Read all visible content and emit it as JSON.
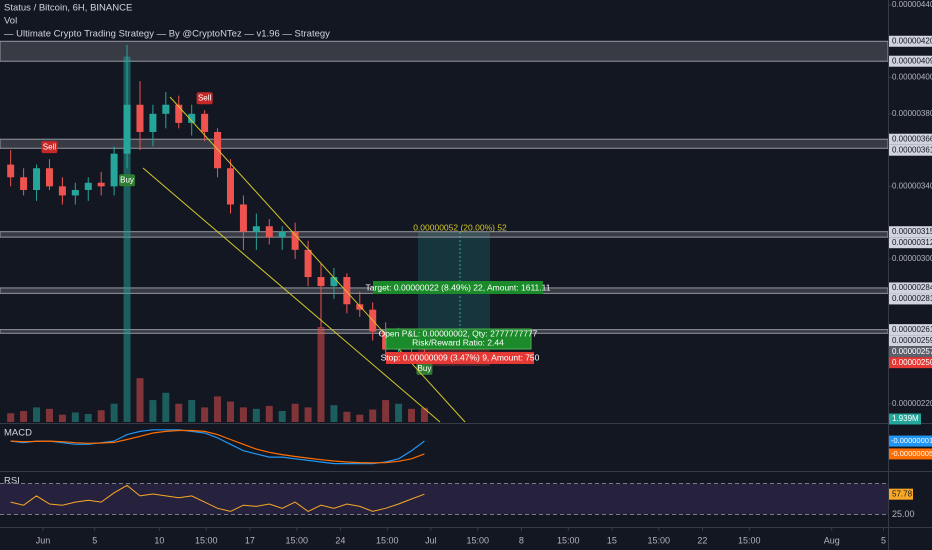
{
  "header": {
    "title": "Status / Bitcoin, 6H, BINANCE",
    "volume_label": "Vol",
    "strategy": "— Ultimate Crypto Trading Strategy — By @CryptoNTez — v1.96 — Strategy"
  },
  "chart_data": {
    "type": "candlestick",
    "x": [
      "05-29",
      "05-30",
      "05-31",
      "06-01",
      "06-02",
      "06-03",
      "06-04",
      "06-05",
      "06-06",
      "06-07",
      "06-08",
      "06-09",
      "06-10",
      "06-11",
      "06-12",
      "06-13",
      "06-14",
      "06-15",
      "06-16",
      "06-17",
      "06-18",
      "06-19",
      "06-20",
      "06-21",
      "06-22",
      "06-23",
      "06-24",
      "06-25",
      "06-26",
      "06-27",
      "06-28",
      "06-29",
      "06-30"
    ],
    "open": [
      3.52e-06,
      3.45e-06,
      3.38e-06,
      3.5e-06,
      3.4e-06,
      3.35e-06,
      3.38e-06,
      3.42e-06,
      3.4e-06,
      3.58e-06,
      3.85e-06,
      3.7e-06,
      3.8e-06,
      3.85e-06,
      3.75e-06,
      3.8e-06,
      3.7e-06,
      3.5e-06,
      3.3e-06,
      3.15e-06,
      3.18e-06,
      3.12e-06,
      3.15e-06,
      3.05e-06,
      2.9e-06,
      2.85e-06,
      2.9e-06,
      2.75e-06,
      2.72e-06,
      2.6e-06,
      2.5e-06,
      2.55e-06,
      2.52e-06
    ],
    "high": [
      3.6e-06,
      3.5e-06,
      3.52e-06,
      3.55e-06,
      3.45e-06,
      3.42e-06,
      3.45e-06,
      3.48e-06,
      3.62e-06,
      4.18e-06,
      3.98e-06,
      3.85e-06,
      3.92e-06,
      3.9e-06,
      3.85e-06,
      3.82e-06,
      3.72e-06,
      3.55e-06,
      3.35e-06,
      3.25e-06,
      3.22e-06,
      3.18e-06,
      3.2e-06,
      3.1e-06,
      2.98e-06,
      2.95e-06,
      2.92e-06,
      2.82e-06,
      2.76e-06,
      2.65e-06,
      2.62e-06,
      2.6e-06,
      2.58e-06
    ],
    "low": [
      3.4e-06,
      3.35e-06,
      3.32e-06,
      3.38e-06,
      3.3e-06,
      3.3e-06,
      3.32e-06,
      3.35e-06,
      3.35e-06,
      3.5e-06,
      3.6e-06,
      3.62e-06,
      3.72e-06,
      3.72e-06,
      3.68e-06,
      3.65e-06,
      3.45e-06,
      3.25e-06,
      3.05e-06,
      3.05e-06,
      3.08e-06,
      3.05e-06,
      3e-06,
      2.85e-06,
      2.62e-06,
      2.78e-06,
      2.7e-06,
      2.68e-06,
      2.55e-06,
      2.45e-06,
      2.43e-06,
      2.48e-06,
      2.46e-06
    ],
    "close": [
      3.45e-06,
      3.38e-06,
      3.5e-06,
      3.4e-06,
      3.35e-06,
      3.38e-06,
      3.42e-06,
      3.4e-06,
      3.58e-06,
      3.85e-06,
      3.7e-06,
      3.8e-06,
      3.85e-06,
      3.75e-06,
      3.8e-06,
      3.7e-06,
      3.5e-06,
      3.3e-06,
      3.15e-06,
      3.18e-06,
      3.12e-06,
      3.15e-06,
      3.05e-06,
      2.9e-06,
      2.85e-06,
      2.9e-06,
      2.75e-06,
      2.72e-06,
      2.6e-06,
      2.5e-06,
      2.55e-06,
      2.52e-06,
      2.5e-06
    ],
    "up_color": "#26a69a",
    "down_color": "#ef5350",
    "ylim": [
      2.2e-06,
      4.4e-06
    ],
    "yticks": [
      {
        "value": 4.4e-06,
        "label": "0.00000440"
      },
      {
        "value": 4e-06,
        "label": "0.00000400"
      },
      {
        "value": 3.8e-06,
        "label": "0.00000380"
      },
      {
        "value": 3.4e-06,
        "label": "0.00000340"
      },
      {
        "value": 3e-06,
        "label": "0.00000300"
      },
      {
        "value": 2.2e-06,
        "label": "0.00000220"
      }
    ],
    "zones": [
      {
        "low": {
          "value": 4.09e-06,
          "label": "0.00000409"
        },
        "high": {
          "value": 4.2e-06,
          "label": "0.00000420"
        }
      },
      {
        "low": {
          "value": 3.61e-06,
          "label": "0.00000361"
        },
        "high": {
          "value": 3.66e-06,
          "label": "0.00000366"
        }
      },
      {
        "low": {
          "value": 3.12e-06,
          "label": "0.00000312"
        },
        "high": {
          "value": 3.15e-06,
          "label": "0.00000315"
        }
      },
      {
        "low": {
          "value": 2.81e-06,
          "label": "0.00000281"
        },
        "high": {
          "value": 2.84e-06,
          "label": "0.00000284"
        }
      },
      {
        "low": {
          "value": 2.59e-06,
          "label": "0.00000259"
        },
        "high": {
          "value": 2.61e-06,
          "label": "0.00000261"
        }
      }
    ],
    "entry_price": {
      "value": 2.57e-06,
      "label": "0.00000257"
    },
    "last_price": {
      "value": 2.5e-06,
      "label": "0.00000250"
    },
    "xticks": [
      {
        "value": "06-01",
        "label": "Jun"
      },
      {
        "value": "06-05",
        "label": "5"
      },
      {
        "value": "06-10",
        "label": "10"
      },
      {
        "value": "06-13 15:00",
        "label": "15:00"
      },
      {
        "value": "06-17",
        "label": "17"
      },
      {
        "value": "06-20 15:00",
        "label": "15:00"
      },
      {
        "value": "06-24",
        "label": "24"
      },
      {
        "value": "06-27 15:00",
        "label": "15:00"
      },
      {
        "value": "07-01",
        "label": "Jul"
      },
      {
        "value": "07-04 15:00",
        "label": "15:00"
      },
      {
        "value": "07-08",
        "label": "8"
      },
      {
        "value": "07-11 15:00",
        "label": "15:00"
      },
      {
        "value": "07-15",
        "label": "15"
      },
      {
        "value": "07-18 15:00",
        "label": "15:00"
      },
      {
        "value": "07-22",
        "label": "22"
      },
      {
        "value": "07-25 15:00",
        "label": "15:00"
      },
      {
        "value": "08-01",
        "label": "Aug"
      },
      {
        "value": "08-05",
        "label": "5"
      }
    ],
    "signals": [
      {
        "x": "06-01",
        "label": "Sell"
      },
      {
        "x": "06-07",
        "label": "Buy"
      },
      {
        "x": "06-13",
        "label": "Sell"
      },
      {
        "x": "06-30",
        "label": "Buy"
      }
    ],
    "volume": {
      "values": [
        1200000,
        1500000,
        2000000,
        1800000,
        1000000,
        1300000,
        1100000,
        1600000,
        2500000,
        50000000,
        6000000,
        3000000,
        4000000,
        2500000,
        3000000,
        2000000,
        3500000,
        2800000,
        2000000,
        1800000,
        2200000,
        1500000,
        2500000,
        2000000,
        13000000,
        2300000,
        1400000,
        1000000,
        1700000,
        3000000,
        2500000,
        1800000,
        1939000
      ],
      "ylim": [
        0,
        52000000
      ],
      "last": {
        "value": 1939000,
        "label": "1.939M"
      }
    },
    "position_tool": {
      "top": "0.00000052 (20.00%) 52",
      "target": "Target: 0.00000022 (8.49%) 22, Amount: 1611.11",
      "open_pnl": "Open P&L: 0.00000002, Qty: 2777777777",
      "risk_reward": "Risk/Reward Ratio: 2.44",
      "stop": "Stop: 0.00000009 (3.47%) 9, Amount: 750"
    },
    "macd": {
      "title": "MACD",
      "ylim": [
        -1e-07,
        4e-08
      ],
      "series": [
        {
          "name": "MACD",
          "color": "#2196f3",
          "values": [
            -1e-08,
            -1.5e-08,
            -1e-08,
            -1e-08,
            -1.5e-08,
            -2e-08,
            -2e-08,
            -1.5e-08,
            -1e-08,
            1e-08,
            2e-08,
            2.5e-08,
            2.5e-08,
            2.5e-08,
            2e-08,
            1.5e-08,
            0,
            -2e-08,
            -4e-08,
            -5e-08,
            -6e-08,
            -6e-08,
            -6.5e-08,
            -7e-08,
            -7.5e-08,
            -8e-08,
            -8e-08,
            -8e-08,
            -8e-08,
            -7.5e-08,
            -6.5e-08,
            -4e-08,
            -1e-08
          ],
          "last_label": "-0.00000001"
        },
        {
          "name": "Signal",
          "color": "#ff6d00",
          "values": [
            -1e-08,
            -1.2e-08,
            -1.1e-08,
            -1e-08,
            -1.2e-08,
            -1.5e-08,
            -1.7e-08,
            -1.6e-08,
            -1.4e-08,
            -5e-09,
            5e-09,
            1.5e-08,
            2e-08,
            2.3e-08,
            2.3e-08,
            2e-08,
            1e-08,
            -5e-09,
            -2e-08,
            -3.5e-08,
            -4.5e-08,
            -5.2e-08,
            -5.8e-08,
            -6.3e-08,
            -6.8e-08,
            -7.2e-08,
            -7.5e-08,
            -7.7e-08,
            -7.8e-08,
            -7.7e-08,
            -7.3e-08,
            -6.5e-08,
            -5e-08
          ],
          "last_label": "-0.00000005"
        }
      ]
    },
    "rsi": {
      "title": "RSI",
      "color": "#f9a825",
      "ylim": [
        0,
        100
      ],
      "band": [
        25,
        75
      ],
      "values": [
        45,
        40,
        55,
        42,
        40,
        45,
        48,
        45,
        60,
        72,
        55,
        58,
        55,
        52,
        55,
        45,
        35,
        30,
        40,
        38,
        42,
        35,
        45,
        30,
        40,
        35,
        42,
        38,
        30,
        35,
        42,
        50,
        57.78
      ],
      "yticks": [
        {
          "value": 25,
          "label": "25.00"
        }
      ]
    }
  }
}
